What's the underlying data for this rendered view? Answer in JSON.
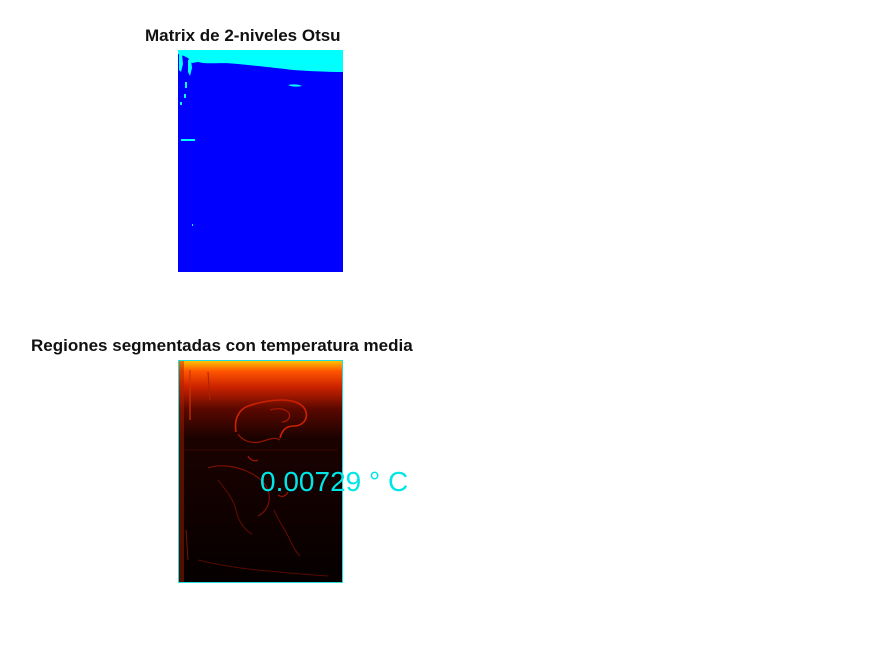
{
  "top_panel": {
    "title": "Matrix de 2-niveles Otsu",
    "colors": {
      "background_region": "#0000ff",
      "foreground_region": "#00ffff"
    }
  },
  "bottom_panel": {
    "title": "Regiones segmentadas con temperatura media",
    "temperature_label": "0.00729 ° C",
    "colors": {
      "label": "#00e5e5",
      "border": "#22dddd",
      "base": "#050000",
      "heat": "#ff3300"
    }
  }
}
